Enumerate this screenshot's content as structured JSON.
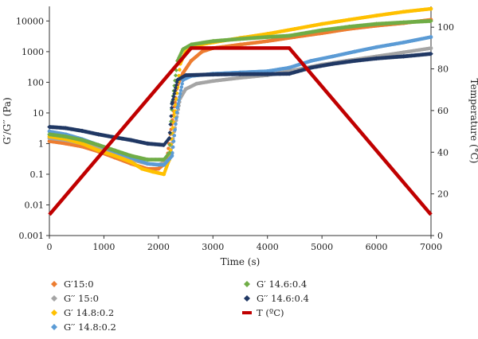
{
  "chart_data": {
    "type": "scatter",
    "title": "",
    "xlabel": "Time (s)",
    "ylabel_left": "G′/G′′ (Pa)",
    "ylabel_right": "Temperature (°C)",
    "xlim": [
      0,
      7000
    ],
    "x_ticks": [
      "0",
      "1000",
      "2000",
      "3000",
      "4000",
      "5000",
      "6000",
      "7000"
    ],
    "y_left_scale": "log",
    "y_left_lim": [
      0.001,
      30000
    ],
    "y_left_ticks": [
      "0.001",
      "0.01",
      "0.1",
      "1",
      "10",
      "100",
      "1000",
      "10000"
    ],
    "y_right_lim": [
      0,
      110
    ],
    "y_right_ticks": [
      "0",
      "20",
      "40",
      "60",
      "80",
      "100"
    ],
    "grid": false,
    "legend_position": "bottom",
    "series": [
      {
        "name": "G′15:0",
        "color": "#ED7D31",
        "marker": "circle",
        "axis": "left",
        "points": [
          [
            0,
            1.2
          ],
          [
            300,
            1.0
          ],
          [
            600,
            0.8
          ],
          [
            900,
            0.55
          ],
          [
            1200,
            0.35
          ],
          [
            1500,
            0.22
          ],
          [
            1800,
            0.15
          ],
          [
            2000,
            0.15
          ],
          [
            2150,
            0.25
          ],
          [
            2250,
            5
          ],
          [
            2350,
            80
          ],
          [
            2450,
            200
          ],
          [
            2600,
            500
          ],
          [
            2800,
            1000
          ],
          [
            3000,
            1300
          ],
          [
            3500,
            1700
          ],
          [
            4000,
            2200
          ],
          [
            4500,
            3000
          ],
          [
            5000,
            4000
          ],
          [
            5500,
            5500
          ],
          [
            6000,
            7000
          ],
          [
            6500,
            8500
          ],
          [
            7000,
            11000
          ]
        ]
      },
      {
        "name": "G′′ 15:0",
        "color": "#A5A5A5",
        "marker": "circle",
        "axis": "left",
        "points": [
          [
            0,
            1.5
          ],
          [
            300,
            1.3
          ],
          [
            600,
            1.0
          ],
          [
            900,
            0.7
          ],
          [
            1200,
            0.45
          ],
          [
            1500,
            0.3
          ],
          [
            1800,
            0.22
          ],
          [
            2000,
            0.2
          ],
          [
            2200,
            0.3
          ],
          [
            2300,
            3
          ],
          [
            2400,
            30
          ],
          [
            2500,
            60
          ],
          [
            2700,
            90
          ],
          [
            3000,
            110
          ],
          [
            3500,
            140
          ],
          [
            4000,
            170
          ],
          [
            4500,
            250
          ],
          [
            5000,
            380
          ],
          [
            5500,
            520
          ],
          [
            6000,
            700
          ],
          [
            6500,
            950
          ],
          [
            7000,
            1300
          ]
        ]
      },
      {
        "name": "G′ 14.8:0.2",
        "color": "#FFC000",
        "marker": "circle",
        "axis": "left",
        "points": [
          [
            0,
            1.7
          ],
          [
            300,
            1.4
          ],
          [
            600,
            1.0
          ],
          [
            900,
            0.6
          ],
          [
            1200,
            0.4
          ],
          [
            1500,
            0.25
          ],
          [
            1700,
            0.15
          ],
          [
            1900,
            0.12
          ],
          [
            2100,
            0.1
          ],
          [
            2200,
            0.3
          ],
          [
            2300,
            10
          ],
          [
            2400,
            400
          ],
          [
            2500,
            1000
          ],
          [
            2700,
            1600
          ],
          [
            3000,
            2000
          ],
          [
            3500,
            2800
          ],
          [
            4000,
            3800
          ],
          [
            4500,
            5500
          ],
          [
            5000,
            8000
          ],
          [
            5500,
            11000
          ],
          [
            6000,
            15000
          ],
          [
            6500,
            20000
          ],
          [
            7000,
            25000
          ]
        ]
      },
      {
        "name": "G′′ 14.8:0.2",
        "color": "#5B9BD5",
        "marker": "circle",
        "axis": "left",
        "points": [
          [
            0,
            2.5
          ],
          [
            300,
            2.0
          ],
          [
            600,
            1.4
          ],
          [
            900,
            0.9
          ],
          [
            1200,
            0.55
          ],
          [
            1500,
            0.35
          ],
          [
            1800,
            0.22
          ],
          [
            2100,
            0.2
          ],
          [
            2250,
            0.4
          ],
          [
            2350,
            15
          ],
          [
            2450,
            120
          ],
          [
            2600,
            160
          ],
          [
            3000,
            190
          ],
          [
            3500,
            210
          ],
          [
            4000,
            230
          ],
          [
            4400,
            300
          ],
          [
            4800,
            500
          ],
          [
            5200,
            700
          ],
          [
            5600,
            1000
          ],
          [
            6000,
            1400
          ],
          [
            6500,
            2000
          ],
          [
            7000,
            3000
          ]
        ]
      },
      {
        "name": "G′ 14.6:0.4",
        "color": "#70AD47",
        "marker": "diamond",
        "axis": "left",
        "points": [
          [
            0,
            2.0
          ],
          [
            300,
            1.7
          ],
          [
            600,
            1.3
          ],
          [
            900,
            0.9
          ],
          [
            1200,
            0.6
          ],
          [
            1500,
            0.4
          ],
          [
            1800,
            0.3
          ],
          [
            2100,
            0.3
          ],
          [
            2200,
            0.5
          ],
          [
            2250,
            20
          ],
          [
            2350,
            500
          ],
          [
            2450,
            1200
          ],
          [
            2600,
            1700
          ],
          [
            3000,
            2200
          ],
          [
            3500,
            2600
          ],
          [
            4000,
            3000
          ],
          [
            4400,
            3300
          ],
          [
            5000,
            5000
          ],
          [
            5500,
            6500
          ],
          [
            6000,
            8000
          ],
          [
            6500,
            9000
          ],
          [
            7000,
            10000
          ]
        ]
      },
      {
        "name": "G′′ 14.6:0.4",
        "color": "#203864",
        "marker": "diamond",
        "axis": "left",
        "points": [
          [
            0,
            3.5
          ],
          [
            300,
            3.2
          ],
          [
            600,
            2.6
          ],
          [
            900,
            2.0
          ],
          [
            1200,
            1.6
          ],
          [
            1500,
            1.3
          ],
          [
            1800,
            1.0
          ],
          [
            2100,
            0.9
          ],
          [
            2200,
            1.5
          ],
          [
            2250,
            20
          ],
          [
            2350,
            120
          ],
          [
            2500,
            170
          ],
          [
            3000,
            180
          ],
          [
            3500,
            185
          ],
          [
            4000,
            185
          ],
          [
            4400,
            190
          ],
          [
            4800,
            300
          ],
          [
            5200,
            400
          ],
          [
            5600,
            500
          ],
          [
            6000,
            600
          ],
          [
            6500,
            700
          ],
          [
            7000,
            850
          ]
        ]
      },
      {
        "name": "T (ºC)",
        "color": "#C00000",
        "marker": "line",
        "axis": "right",
        "points": [
          [
            0,
            10
          ],
          [
            2600,
            90
          ],
          [
            4400,
            90
          ],
          [
            7000,
            10
          ]
        ]
      }
    ]
  }
}
